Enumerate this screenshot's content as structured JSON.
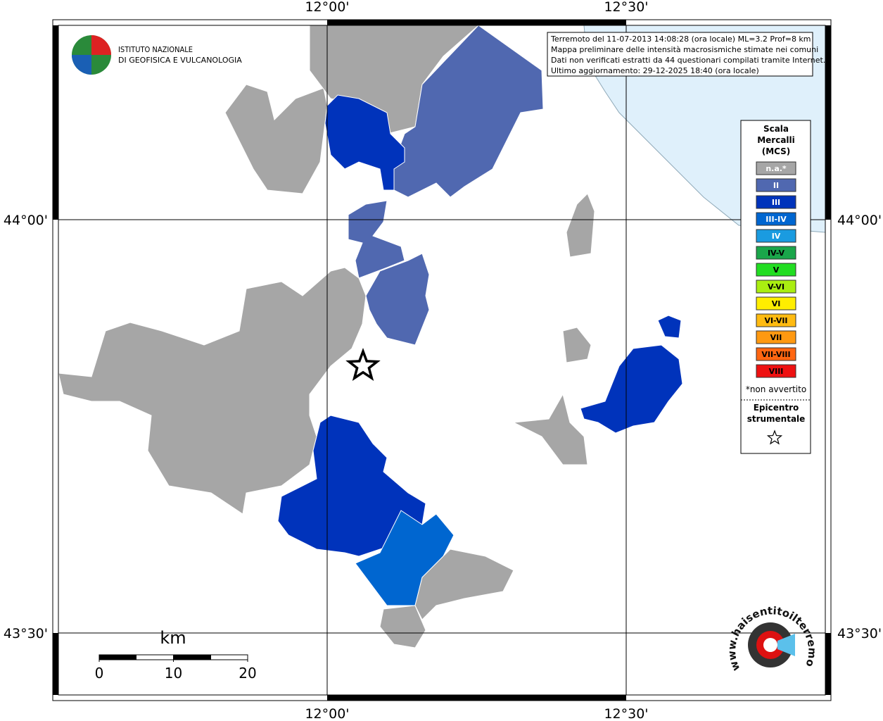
{
  "axes": {
    "top": [
      "12°00'",
      "12°30'"
    ],
    "bottom": [
      "12°00'",
      "12°30'"
    ],
    "left": [
      "44°00'",
      "43°30'"
    ],
    "right": [
      "44°00'",
      "43°30'"
    ]
  },
  "logo": {
    "lines": [
      "ISTITUTO NAZIONALE",
      "DI GEOFISICA E VULCANOLOGIA"
    ]
  },
  "info": {
    "lines": [
      "Terremoto del 11-07-2013 14:08:28 (ora locale) ML=3.2 Prof=8 km",
      "Mappa preliminare delle intensità macrosismiche stimate nei comuni",
      "Dati non verificati estratti da 44 questionari compilati tramite Internet.",
      "Ultimo aggiornamento: 29-12-2025 18:40 (ora locale)"
    ]
  },
  "legend": {
    "title": [
      "Scala",
      "Mercalli",
      "(MCS)"
    ],
    "levels": [
      {
        "label": "n.a.*",
        "color": "#a6a6a6"
      },
      {
        "label": "II",
        "color": "#5068b0"
      },
      {
        "label": "III",
        "color": "#0033bb"
      },
      {
        "label": "III-IV",
        "color": "#0066d0"
      },
      {
        "label": "IV",
        "color": "#1a9be0"
      },
      {
        "label": "IV-V",
        "color": "#1aa64a"
      },
      {
        "label": "V",
        "color": "#22dd22"
      },
      {
        "label": "V-VI",
        "color": "#aaee11"
      },
      {
        "label": "VI",
        "color": "#ffee00"
      },
      {
        "label": "VI-VII",
        "color": "#ffbb11"
      },
      {
        "label": "VII",
        "color": "#ff9911"
      },
      {
        "label": "VII-VIII",
        "color": "#ff6611"
      },
      {
        "label": "VIII",
        "color": "#ee1111"
      }
    ],
    "note": "*non avvertito",
    "epicenter": [
      "Epicentro",
      "strumentale"
    ]
  },
  "scale_bar": {
    "unit": "km",
    "ticks": [
      0,
      10,
      20
    ]
  },
  "website": "www.haisentitoilterremoto.it"
}
